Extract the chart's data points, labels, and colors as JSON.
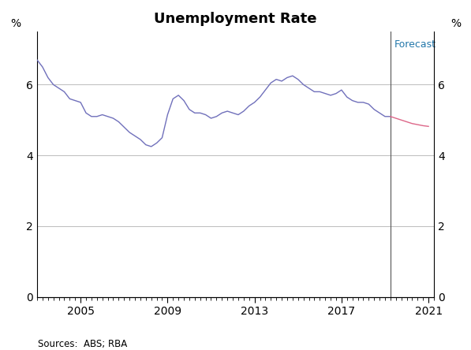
{
  "title": "Unemployment Rate",
  "ylabel_left": "%",
  "ylabel_right": "%",
  "source_text": "Sources:  ABS; RBA",
  "forecast_label": "Forecast",
  "ylim": [
    0,
    7.5
  ],
  "yticks": [
    0,
    2,
    4,
    6
  ],
  "forecast_line_x": 2019.25,
  "historical_color": "#7070bb",
  "forecast_color": "#dd6688",
  "forecast_label_color": "#2277aa",
  "vline_color": "#555555",
  "grid_color": "#bbbbbb",
  "historical_data": [
    [
      2003.0,
      6.7
    ],
    [
      2003.25,
      6.5
    ],
    [
      2003.5,
      6.2
    ],
    [
      2003.75,
      6.0
    ],
    [
      2004.0,
      5.9
    ],
    [
      2004.25,
      5.8
    ],
    [
      2004.5,
      5.6
    ],
    [
      2004.75,
      5.55
    ],
    [
      2005.0,
      5.5
    ],
    [
      2005.25,
      5.2
    ],
    [
      2005.5,
      5.1
    ],
    [
      2005.75,
      5.1
    ],
    [
      2006.0,
      5.15
    ],
    [
      2006.25,
      5.1
    ],
    [
      2006.5,
      5.05
    ],
    [
      2006.75,
      4.95
    ],
    [
      2007.0,
      4.8
    ],
    [
      2007.25,
      4.65
    ],
    [
      2007.5,
      4.55
    ],
    [
      2007.75,
      4.45
    ],
    [
      2008.0,
      4.3
    ],
    [
      2008.25,
      4.25
    ],
    [
      2008.5,
      4.35
    ],
    [
      2008.75,
      4.5
    ],
    [
      2009.0,
      5.15
    ],
    [
      2009.25,
      5.6
    ],
    [
      2009.5,
      5.7
    ],
    [
      2009.75,
      5.55
    ],
    [
      2010.0,
      5.3
    ],
    [
      2010.25,
      5.2
    ],
    [
      2010.5,
      5.2
    ],
    [
      2010.75,
      5.15
    ],
    [
      2011.0,
      5.05
    ],
    [
      2011.25,
      5.1
    ],
    [
      2011.5,
      5.2
    ],
    [
      2011.75,
      5.25
    ],
    [
      2012.0,
      5.2
    ],
    [
      2012.25,
      5.15
    ],
    [
      2012.5,
      5.25
    ],
    [
      2012.75,
      5.4
    ],
    [
      2013.0,
      5.5
    ],
    [
      2013.25,
      5.65
    ],
    [
      2013.5,
      5.85
    ],
    [
      2013.75,
      6.05
    ],
    [
      2014.0,
      6.15
    ],
    [
      2014.25,
      6.1
    ],
    [
      2014.5,
      6.2
    ],
    [
      2014.75,
      6.25
    ],
    [
      2015.0,
      6.15
    ],
    [
      2015.25,
      6.0
    ],
    [
      2015.5,
      5.9
    ],
    [
      2015.75,
      5.8
    ],
    [
      2016.0,
      5.8
    ],
    [
      2016.25,
      5.75
    ],
    [
      2016.5,
      5.7
    ],
    [
      2016.75,
      5.75
    ],
    [
      2017.0,
      5.85
    ],
    [
      2017.25,
      5.65
    ],
    [
      2017.5,
      5.55
    ],
    [
      2017.75,
      5.5
    ],
    [
      2018.0,
      5.5
    ],
    [
      2018.25,
      5.45
    ],
    [
      2018.5,
      5.3
    ],
    [
      2018.75,
      5.2
    ],
    [
      2019.0,
      5.1
    ],
    [
      2019.25,
      5.1
    ]
  ],
  "forecast_data": [
    [
      2019.25,
      5.1
    ],
    [
      2019.5,
      5.05
    ],
    [
      2019.75,
      5.0
    ],
    [
      2020.0,
      4.95
    ],
    [
      2020.25,
      4.9
    ],
    [
      2020.5,
      4.87
    ],
    [
      2020.75,
      4.84
    ],
    [
      2021.0,
      4.82
    ]
  ],
  "xlim": [
    2003.0,
    2021.25
  ],
  "xticks": [
    2005,
    2009,
    2013,
    2017,
    2021
  ],
  "xticklabels": [
    "2005",
    "2009",
    "2013",
    "2017",
    "2021"
  ],
  "minor_xtick_interval": 0.25
}
